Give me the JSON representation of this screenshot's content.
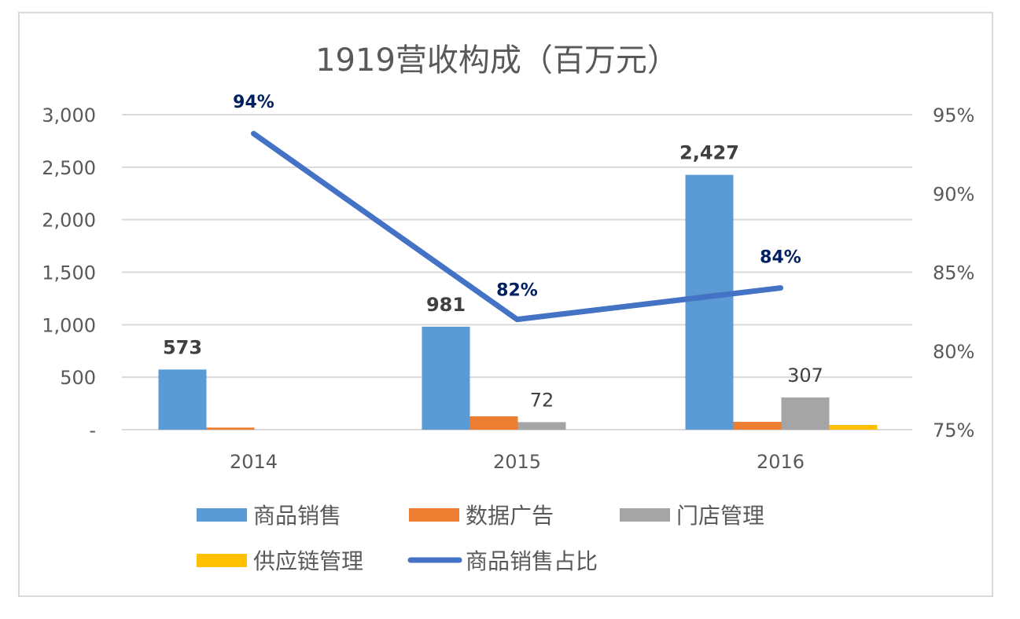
{
  "chart_data": {
    "type": "bar+line",
    "title": "1919营收构成（百万元）",
    "categories": [
      "2014",
      "2015",
      "2016"
    ],
    "y_left": {
      "range": [
        0,
        3000
      ],
      "ticks": [
        0,
        500,
        1000,
        1500,
        2000,
        2500,
        3000
      ],
      "tick_labels": [
        "-",
        "500",
        "1,000",
        "1,500",
        "2,000",
        "2,500",
        "3,000"
      ]
    },
    "y_right": {
      "range": [
        75,
        95
      ],
      "ticks": [
        75,
        80,
        85,
        90,
        95
      ],
      "tick_labels": [
        "75%",
        "80%",
        "85%",
        "90%",
        "95%"
      ]
    },
    "grid": true,
    "legend_position": "bottom",
    "bar_series": [
      {
        "name": "商品销售",
        "color": "#5b9bd5",
        "values": [
          573,
          981,
          2427
        ],
        "labels": [
          "573",
          "981",
          "2,427"
        ],
        "label_bold": true
      },
      {
        "name": "数据广告",
        "color": "#ed7d31",
        "values": [
          20,
          127,
          75
        ],
        "labels": [
          "",
          "",
          ""
        ]
      },
      {
        "name": "门店管理",
        "color": "#a5a5a5",
        "values": [
          0,
          72,
          307
        ],
        "labels": [
          "",
          "72",
          "307"
        ]
      },
      {
        "name": "供应链管理",
        "color": "#ffc000",
        "values": [
          0,
          0,
          45
        ],
        "labels": [
          "",
          "",
          ""
        ]
      }
    ],
    "line_series": {
      "name": "商品销售占比",
      "color": "#4472c4",
      "label_color": "#002060",
      "axis": "right",
      "values": [
        93.8,
        82.0,
        84.0
      ],
      "labels": [
        "94%",
        "82%",
        "84%"
      ]
    }
  }
}
